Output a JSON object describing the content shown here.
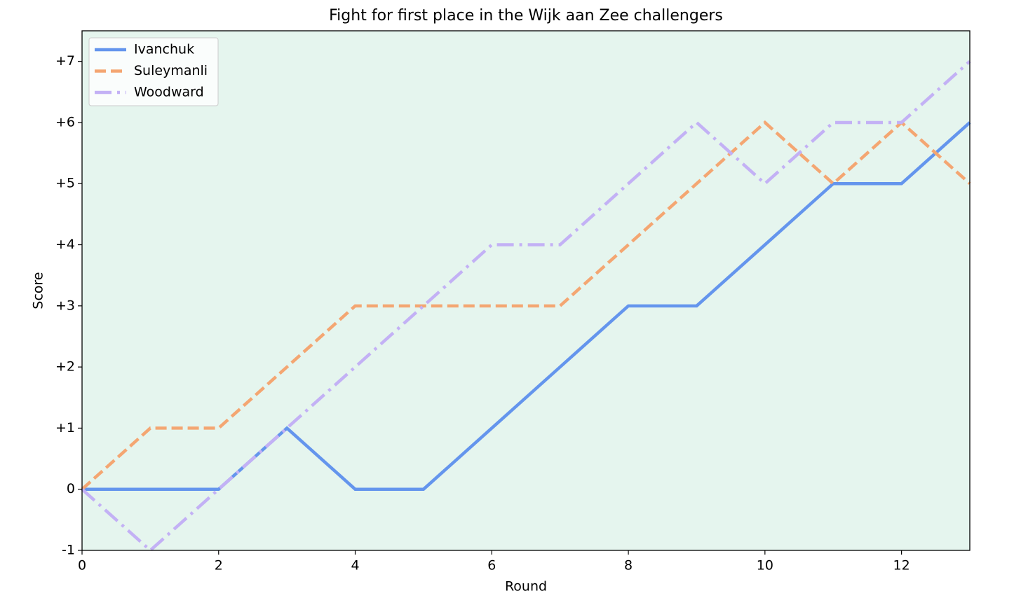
{
  "chart_data": {
    "type": "line",
    "title": "Fight for first place in the Wijk aan Zee challengers",
    "xlabel": "Round",
    "ylabel": "Score",
    "x": [
      0,
      1,
      2,
      3,
      4,
      5,
      6,
      7,
      8,
      9,
      10,
      11,
      12,
      13
    ],
    "series": [
      {
        "name": "Ivanchuk",
        "color": "#6495ed",
        "linestyle": "solid",
        "values": [
          0,
          0,
          0,
          1,
          0,
          0,
          1,
          2,
          3,
          3,
          4,
          5,
          5,
          6
        ]
      },
      {
        "name": "Suleymanli",
        "color": "#f4a672",
        "linestyle": "dashed",
        "values": [
          0,
          1,
          1,
          2,
          3,
          3,
          3,
          3,
          4,
          5,
          6,
          5,
          6,
          5
        ]
      },
      {
        "name": "Woodward",
        "color": "#c3b1f5",
        "linestyle": "dashdot",
        "values": [
          0,
          -1,
          0,
          1,
          2,
          3,
          4,
          4,
          5,
          6,
          5,
          6,
          6,
          7
        ]
      }
    ],
    "xlim": [
      0,
      13
    ],
    "xticks": [
      0,
      2,
      4,
      6,
      8,
      10,
      12
    ],
    "ylim": [
      -1,
      7.5
    ],
    "yticks": [
      -1,
      0,
      {
        "value": 1,
        "label": "+1"
      },
      {
        "value": 2,
        "label": "+2"
      },
      {
        "value": 3,
        "label": "+3"
      },
      {
        "value": 4,
        "label": "+4"
      },
      {
        "value": 5,
        "label": "+5"
      },
      {
        "value": 6,
        "label": "+6"
      },
      {
        "value": 7,
        "label": "+7"
      }
    ],
    "background": "#e5f5ee",
    "legend": "upper-left"
  }
}
